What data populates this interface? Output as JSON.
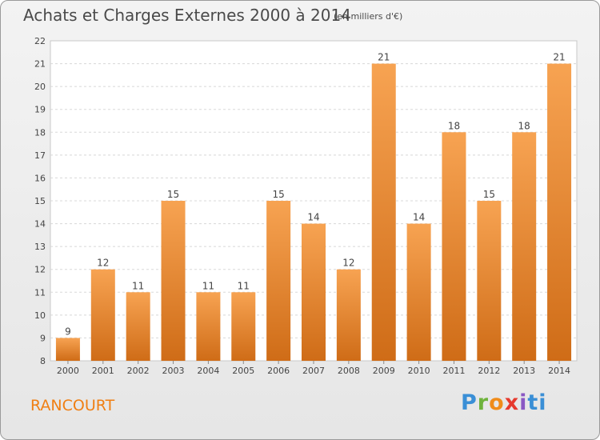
{
  "chart_data": {
    "type": "bar",
    "title": "Achats et Charges Externes 2000 à 2014",
    "subtitle": "(en milliers d'€)",
    "categories": [
      "2000",
      "2001",
      "2002",
      "2003",
      "2004",
      "2005",
      "2006",
      "2007",
      "2008",
      "2009",
      "2010",
      "2011",
      "2012",
      "2013",
      "2014"
    ],
    "values": [
      9,
      12,
      11,
      15,
      11,
      11,
      15,
      14,
      12,
      21,
      14,
      18,
      15,
      18,
      21
    ],
    "data_labels": [
      "9",
      "12",
      "11",
      "15",
      "11",
      "11",
      "15",
      "14",
      "12",
      "21",
      "14",
      "18",
      "15",
      "18",
      "21"
    ],
    "y_ticks": [
      "8",
      "9",
      "10",
      "11",
      "12",
      "13",
      "14",
      "15",
      "16",
      "17",
      "18",
      "19",
      "20",
      "21",
      "22"
    ],
    "ylim": [
      8,
      22
    ],
    "grid": true,
    "bar_color_top": "#f7a352",
    "bar_color_bottom": "#cf6c17"
  },
  "footer": {
    "commune": "RANCOURT",
    "logo": [
      "P",
      "r",
      "o",
      "x",
      "i",
      "t",
      "i"
    ]
  }
}
